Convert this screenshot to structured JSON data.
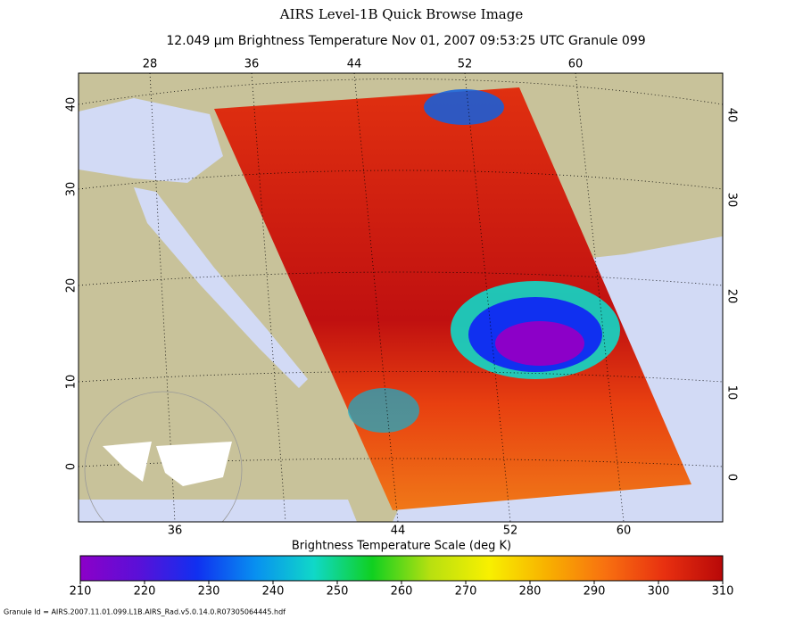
{
  "header": {
    "title": "AIRS Level-1B Quick Browse Image",
    "subtitle": "12.049 μm Brightness Temperature    Nov 01, 2007 09:53:25 UTC   Granule 099"
  },
  "map": {
    "top_lon_labels": [
      "28",
      "36",
      "44",
      "52",
      "60"
    ],
    "bottom_lon_labels": [
      "36",
      "44",
      "52",
      "60"
    ],
    "left_lat_labels": [
      "40",
      "30",
      "20",
      "10",
      "0"
    ],
    "right_lat_labels": [
      "40",
      "30",
      "20",
      "10",
      "0"
    ]
  },
  "colorbar": {
    "label": "Brightness Temperature Scale (deg K)",
    "lim": [
      210,
      310
    ],
    "ticks": [
      210,
      220,
      230,
      240,
      250,
      260,
      270,
      280,
      290,
      300,
      310
    ],
    "colors": [
      "#8c00c8",
      "#5a10d8",
      "#1030f0",
      "#0890f0",
      "#10d8c8",
      "#10d020",
      "#b8e010",
      "#f8f000",
      "#f8b000",
      "#f87010",
      "#e83010",
      "#b80808"
    ]
  },
  "footer": {
    "granule_id": "Granule Id = AIRS.2007.11.01.099.L1B.AIRS_Rad.v5.0.14.0.R07305064445.hdf"
  }
}
